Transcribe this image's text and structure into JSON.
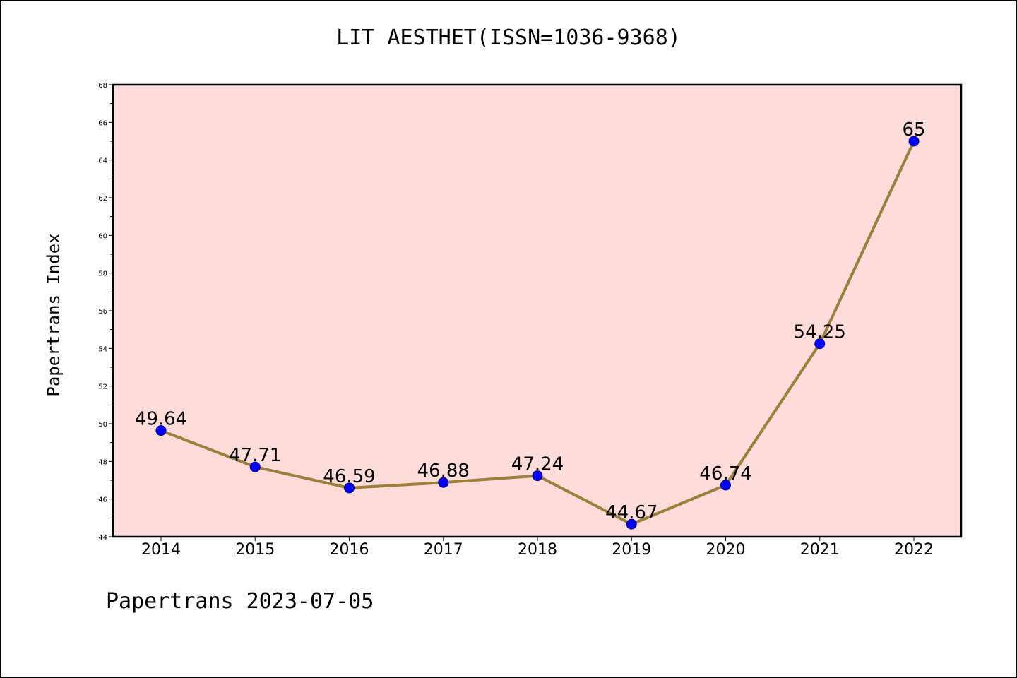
{
  "chart_data": {
    "type": "line",
    "title": "LIT AESTHET(ISSN=1036-9368)",
    "xlabel": "",
    "ylabel": "Papertrans Index",
    "x": [
      "2014",
      "2015",
      "2016",
      "2017",
      "2018",
      "2019",
      "2020",
      "2021",
      "2022"
    ],
    "series": [
      {
        "values": [
          49.64,
          47.71,
          46.59,
          46.88,
          47.24,
          44.67,
          46.74,
          54.25,
          65
        ],
        "data_labels": [
          "49.64",
          "47.71",
          "46.59",
          "46.88",
          "47.24",
          "44.67",
          "46.74",
          "54.25",
          "65"
        ],
        "line_color": "#9b7f3a",
        "marker_color": "#0000ff"
      }
    ],
    "ylim": [
      44,
      68
    ],
    "yticks": [
      "44",
      "46",
      "48",
      "50",
      "52",
      "54",
      "56",
      "58",
      "60",
      "62",
      "64",
      "66",
      "68"
    ],
    "plot_background": "#fddcda",
    "grid": false,
    "legend": "none"
  },
  "footer": "Papertrans 2023-07-05"
}
